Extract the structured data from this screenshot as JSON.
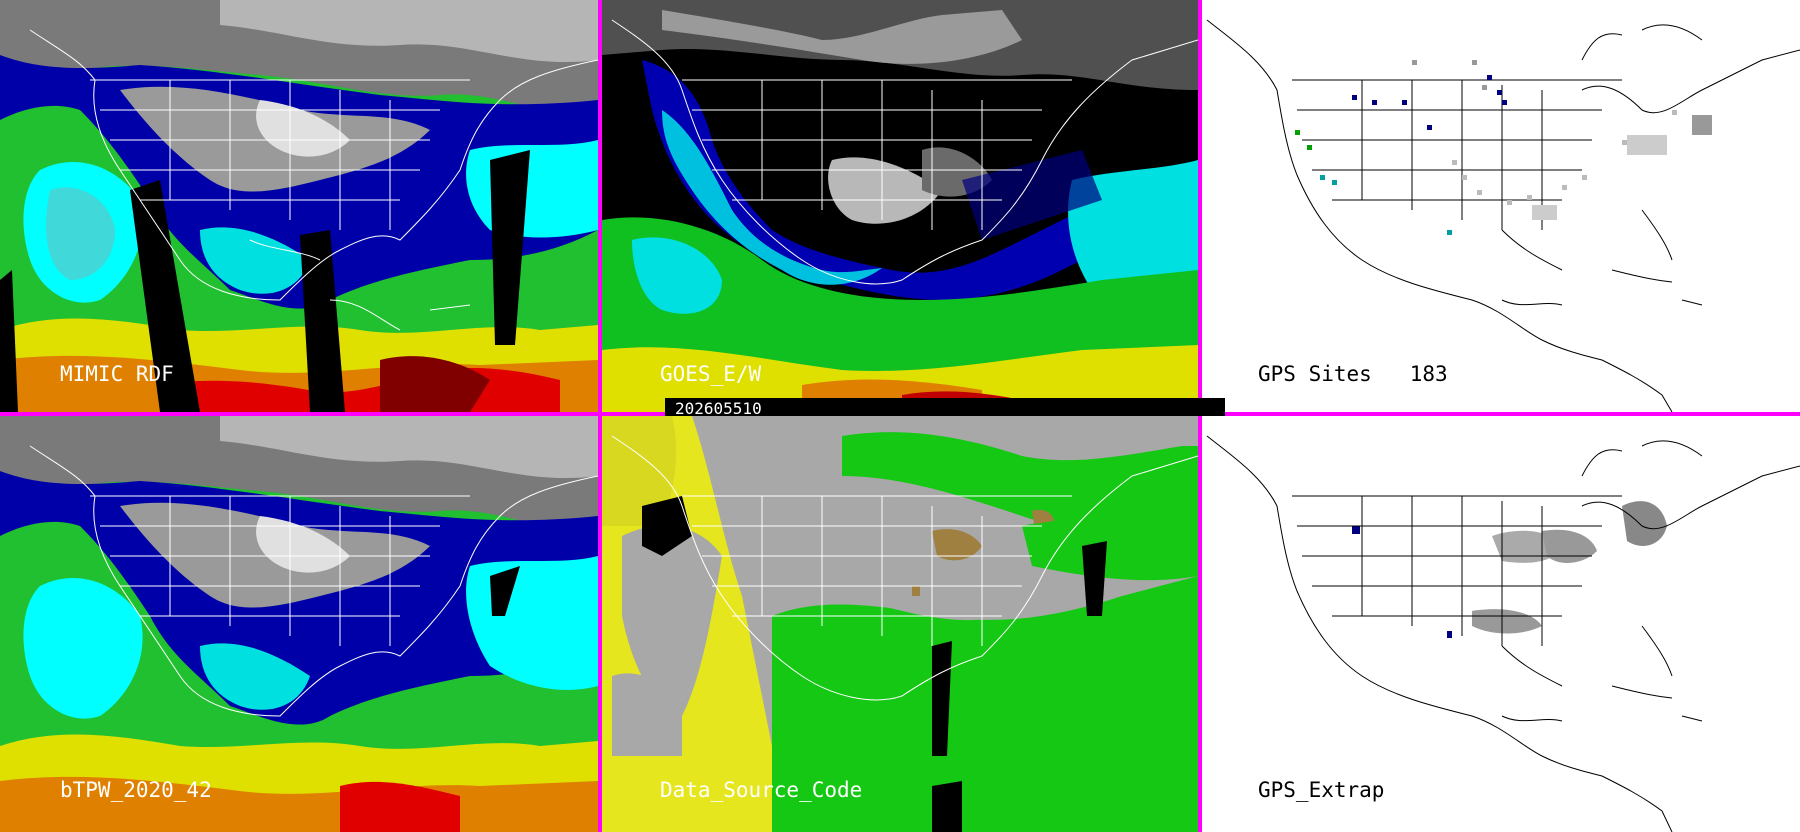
{
  "timestamp": "202605510",
  "panels": [
    {
      "id": "p1",
      "label": "MIMIC RDF",
      "style": "tpw"
    },
    {
      "id": "p2",
      "label": "GOES_E/W",
      "style": "goes"
    },
    {
      "id": "p3",
      "label": "GPS Sites   183",
      "style": "gps"
    },
    {
      "id": "p4",
      "label": "bTPW_2020_42",
      "style": "tpw"
    },
    {
      "id": "p5",
      "label": "Data_Source_Code",
      "style": "dsc"
    },
    {
      "id": "p6",
      "label": "GPS_Extrap",
      "style": "extrap"
    }
  ],
  "colors": {
    "divider": "#ff00ff",
    "tpw_scale": [
      "#505050",
      "#9a9a9a",
      "#e8e8e8",
      "#000080",
      "#0000c0",
      "#1a3ad0",
      "#40e0e0",
      "#00ffff",
      "#20d060",
      "#00c000",
      "#80d020",
      "#e0e000",
      "#e08000",
      "#ff0000",
      "#800000"
    ],
    "dsc_yellow": "#e6e61e",
    "dsc_green": "#14c814",
    "dsc_gray": "#a8a8a8",
    "dsc_brown": "#a08040"
  }
}
